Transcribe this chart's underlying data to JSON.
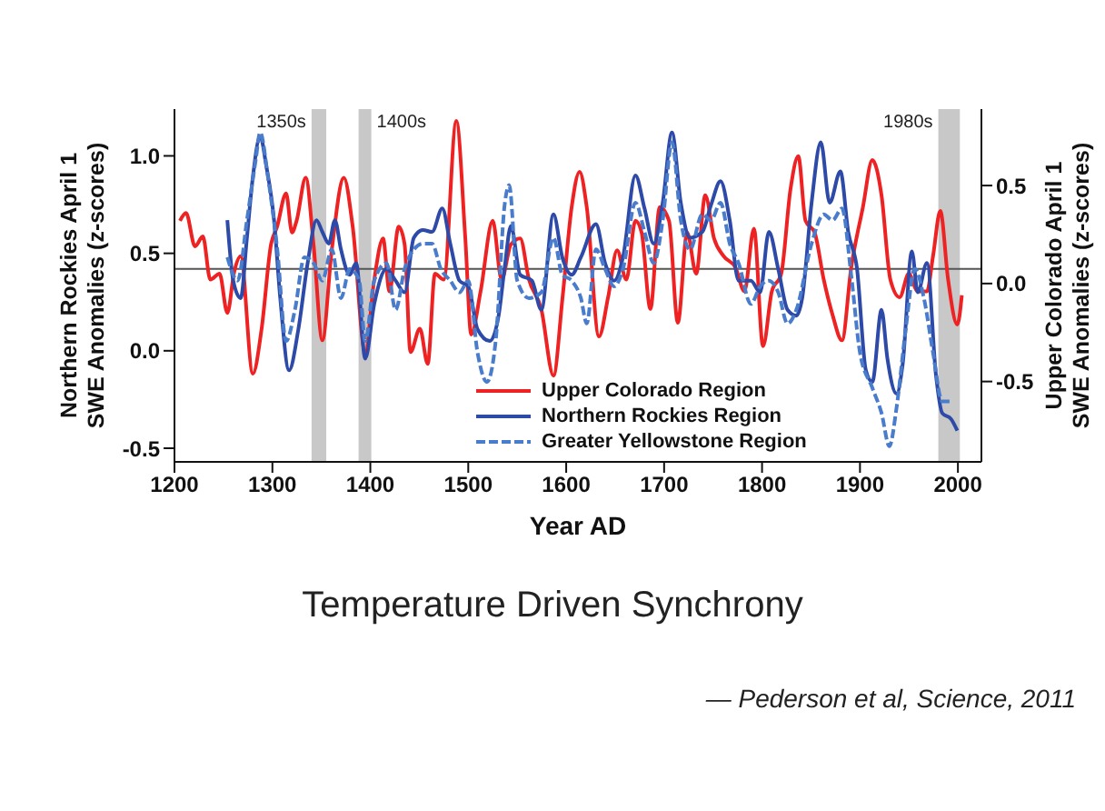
{
  "chart_data": {
    "type": "line",
    "title": "Temperature Driven Synchrony",
    "xlabel": "Year AD",
    "ylabel": "Northern Rockies April 1 SWE Anomalies (z-scores)",
    "y2label": "Upper Colorado April 1 SWE Anomalies (z-scores)",
    "annotations": [
      "— Pederson et al, Science, 2011"
    ],
    "xlim": [
      1200,
      2024
    ],
    "xticks": [
      1200,
      1300,
      1400,
      1500,
      1600,
      1700,
      1800,
      1900,
      2000
    ],
    "ylim": [
      -0.57,
      1.24
    ],
    "yticks": [
      {
        "value": -0.5,
        "label": "-0.5"
      },
      {
        "value": 0,
        "label": "0.0"
      },
      {
        "value": 0.5,
        "label": "0.5"
      },
      {
        "value": 1,
        "label": "1.0"
      }
    ],
    "y2lim": [
      -0.91,
      0.89
    ],
    "y2ticks": [
      {
        "value": -0.5,
        "label": "-0.5"
      },
      {
        "value": 0,
        "label": "0.0"
      },
      {
        "value": 0.5,
        "label": "0.5"
      }
    ],
    "grid": false,
    "legend": "bottom",
    "marker": "none",
    "ref_lines": [
      {
        "axis": "y",
        "value": 0.42,
        "color": "#555555"
      }
    ],
    "bands": [
      {
        "axis": "x",
        "from": 1340,
        "to": 1355,
        "label": "1350s",
        "color": "#c8c8c8"
      },
      {
        "axis": "x",
        "from": 1388,
        "to": 1401,
        "label": "1400s",
        "color": "#c8c8c8"
      },
      {
        "axis": "x",
        "from": 1980,
        "to": 2002,
        "label": "1980s",
        "color": "#c8c8c8"
      }
    ],
    "series": [
      {
        "name": "Upper Colorado Region",
        "color": "#ee2222",
        "axis": "y2",
        "line_style": "solid",
        "x": [
          1205.6,
          1211.8,
          1221,
          1229,
          1236.6,
          1246,
          1254,
          1261,
          1267.6,
          1280,
          1289,
          1298.6,
          1304.8,
          1314,
          1320,
          1324.7,
          1334,
          1342,
          1351,
          1360.6,
          1373,
          1382,
          1394.8,
          1404,
          1413,
          1419.5,
          1429,
          1435,
          1441,
          1450.6,
          1458.6,
          1466,
          1475,
          1487.8,
          1497,
          1503,
          1512.6,
          1525,
          1534,
          1543.6,
          1553,
          1562,
          1574.5,
          1587,
          1596.3,
          1605.6,
          1613.7,
          1621,
          1633.5,
          1642.8,
          1652,
          1661.4,
          1670.7,
          1677,
          1686,
          1695.5,
          1705,
          1714,
          1723.5,
          1732.8,
          1742,
          1751,
          1760.7,
          1773,
          1782,
          1791.7,
          1801,
          1810,
          1819.6,
          1829,
          1837,
          1844.4,
          1853.7,
          1863,
          1872,
          1881.6,
          1891,
          1903,
          1912.6,
          1922,
          1931,
          1940.5,
          1949.8,
          1959,
          1968.4,
          1974.6,
          1982,
          1990,
          1999.4,
          2004
        ],
        "values": [
          0.32,
          0.36,
          0.19,
          0.24,
          0.02,
          0.05,
          -0.15,
          0.06,
          0.14,
          -0.46,
          -0.23,
          0.2,
          0.29,
          0.46,
          0.26,
          0.32,
          0.54,
          0.2,
          -0.29,
          0.17,
          0.54,
          0.29,
          -0.35,
          0.02,
          0.23,
          -0.04,
          0.29,
          0.2,
          -0.35,
          -0.23,
          -0.41,
          0.05,
          0.02,
          0.83,
          0.23,
          -0.26,
          -0.04,
          0.32,
          0.02,
          0.2,
          0.23,
          0.02,
          -0.13,
          -0.47,
          -0.07,
          0.39,
          0.57,
          0.39,
          -0.27,
          -0.07,
          0.17,
          0.02,
          0.32,
          0.26,
          -0.13,
          0.39,
          0.32,
          -0.2,
          0.26,
          0.05,
          0.45,
          0.23,
          0.14,
          0.08,
          -0.04,
          0.28,
          -0.32,
          -0.04,
          0.05,
          0.48,
          0.65,
          0.32,
          0.26,
          0.02,
          -0.16,
          -0.29,
          0.08,
          0.39,
          0.63,
          0.45,
          0.02,
          -0.07,
          0.05,
          -0.04,
          -0.04,
          0.14,
          0.37,
          0.02,
          -0.21,
          -0.06
        ]
      },
      {
        "name": "Northern Rockies Region",
        "color": "#2e4aa8",
        "line_style": "solid",
        "x": [
          1254,
          1260,
          1267.6,
          1274,
          1280,
          1287.5,
          1293.7,
          1301.7,
          1308,
          1317,
          1326.5,
          1336,
          1345,
          1351,
          1357.6,
          1363.8,
          1370,
          1379,
          1385.5,
          1394.8,
          1404,
          1416.5,
          1425.8,
          1435,
          1444.4,
          1453.7,
          1463,
          1473.5,
          1481.6,
          1491,
          1500,
          1509.5,
          1522,
          1531,
          1537,
          1543.6,
          1553,
          1565,
          1574.6,
          1587,
          1596,
          1605.6,
          1615,
          1630.4,
          1639.7,
          1649,
          1658,
          1670.7,
          1680,
          1689.3,
          1698.6,
          1708,
          1717,
          1726.5,
          1739,
          1748,
          1757.6,
          1767,
          1776,
          1788.6,
          1798,
          1807,
          1816.5,
          1826,
          1835,
          1841,
          1850.6,
          1860,
          1869,
          1880,
          1888,
          1897,
          1906,
          1912.6,
          1922,
          1928,
          1937.4,
          1943.6,
          1953,
          1959,
          1968.4,
          1977.7,
          1984,
          1993,
          1999.4
        ],
        "values": [
          0.67,
          0.36,
          0.27,
          0.58,
          0.89,
          1.1,
          0.95,
          0.67,
          0.27,
          -0.1,
          0.11,
          0.45,
          0.67,
          0.61,
          0.55,
          0.67,
          0.52,
          0.39,
          0.45,
          -0.04,
          0.24,
          0.42,
          0.36,
          0.3,
          0.58,
          0.62,
          0.61,
          0.73,
          0.55,
          0.36,
          0.33,
          0.11,
          0.05,
          0.18,
          0.42,
          0.64,
          0.39,
          0.36,
          0.21,
          0.7,
          0.48,
          0.39,
          0.48,
          0.65,
          0.45,
          0.36,
          0.48,
          0.9,
          0.73,
          0.55,
          0.76,
          1.12,
          0.76,
          0.58,
          0.61,
          0.75,
          0.87,
          0.67,
          0.36,
          0.36,
          0.3,
          0.61,
          0.42,
          0.21,
          0.18,
          0.27,
          0.76,
          1.07,
          0.76,
          0.92,
          0.61,
          0.42,
          -0.1,
          -0.16,
          0.21,
          -0.04,
          -0.22,
          -0.07,
          0.51,
          0.3,
          0.45,
          -0.13,
          -0.32,
          -0.35,
          -0.41
        ]
      },
      {
        "name": "Greater Yellowstone Region",
        "color": "#4a7ccc",
        "line_style": "dashed",
        "x": [
          1254,
          1264.5,
          1274,
          1283,
          1287.5,
          1295.5,
          1305,
          1314,
          1323,
          1332.7,
          1342,
          1351,
          1360.6,
          1370,
          1379,
          1388.6,
          1394.8,
          1404,
          1416.5,
          1425.8,
          1435,
          1444.4,
          1453.7,
          1463,
          1472,
          1481.6,
          1491,
          1500,
          1509.5,
          1519,
          1528,
          1537.4,
          1541.8,
          1550,
          1562,
          1574.6,
          1587,
          1596,
          1605.6,
          1615,
          1621,
          1630.4,
          1639.7,
          1649,
          1658,
          1670.7,
          1680,
          1689.3,
          1698.6,
          1708,
          1717,
          1726.5,
          1739,
          1748,
          1757.6,
          1767,
          1776,
          1788.6,
          1798,
          1807,
          1816.5,
          1826,
          1835,
          1850.6,
          1863,
          1872,
          1881.6,
          1891,
          1900,
          1912.6,
          1922,
          1930,
          1937.4,
          1946.7,
          1956,
          1965.3,
          1974.6,
          1984,
          1993
        ],
        "values": [
          0.48,
          0.36,
          0.67,
          0.98,
          1.12,
          0.89,
          0.52,
          0.05,
          0.21,
          0.48,
          0.45,
          0.36,
          0.52,
          0.27,
          0.42,
          0.36,
          0.05,
          0.36,
          0.45,
          0.21,
          0.42,
          0.52,
          0.55,
          0.55,
          0.42,
          0.36,
          0.3,
          0.36,
          -0.01,
          -0.16,
          0.05,
          0.76,
          0.85,
          0.36,
          0.27,
          0.3,
          0.58,
          0.39,
          0.36,
          0.27,
          0.14,
          0.52,
          0.42,
          0.33,
          0.42,
          0.76,
          0.61,
          0.45,
          0.67,
          1.07,
          0.67,
          0.52,
          0.7,
          0.67,
          0.76,
          0.55,
          0.45,
          0.24,
          0.33,
          0.36,
          0.3,
          0.14,
          0.21,
          0.55,
          0.7,
          0.67,
          0.73,
          0.39,
          -0.01,
          -0.19,
          -0.32,
          -0.49,
          -0.29,
          0.11,
          0.42,
          0.27,
          -0.01,
          -0.26,
          -0.26
        ]
      }
    ]
  }
}
